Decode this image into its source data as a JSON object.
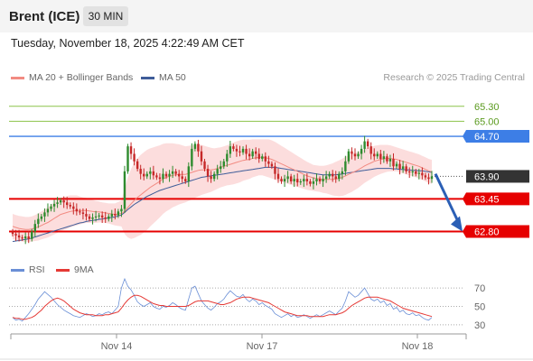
{
  "header": {
    "instrument": "Brent (ICE)",
    "interval": "30 MIN",
    "datetime": "Tuesday, November 18, 2025 4:22:49 AM CET"
  },
  "legend": {
    "ma20": "MA 20 + Bollinger Bands",
    "ma50": "MA 50",
    "credit": "Research © 2025 Trading Central",
    "rsi": "RSI",
    "ma9": "9MA"
  },
  "colors": {
    "resistance": "#8bc34a",
    "pivot": "#3d7ee6",
    "support": "#e60000",
    "last_price": "#333333",
    "ma20": "#f28b82",
    "ma50": "#3f5d99",
    "bollinger_fill": "#fcd9d9",
    "candle_up": "#2e8b2e",
    "candle_down": "#c62828",
    "rsi": "#6a8fd6",
    "rsi_ma": "#e53935",
    "arrow": "#2b5fb5"
  },
  "chart_data": {
    "type": "candlestick",
    "y_range": [
      62.52,
      65.62
    ],
    "x_labels": [
      "Nov 14",
      "Nov 17",
      "Nov 18"
    ],
    "levels": [
      {
        "label": "65.30",
        "value": 65.3,
        "kind": "resistance"
      },
      {
        "label": "65.00",
        "value": 65.0,
        "kind": "resistance"
      },
      {
        "label": "64.70",
        "value": 64.7,
        "kind": "pivot"
      },
      {
        "label": "63.90",
        "value": 63.9,
        "kind": "last"
      },
      {
        "label": "63.45",
        "value": 63.45,
        "kind": "support"
      },
      {
        "label": "62.80",
        "value": 62.8,
        "kind": "support"
      }
    ],
    "forecast_arrow": {
      "from": 63.95,
      "to": 62.8
    },
    "closes": [
      62.75,
      62.72,
      62.68,
      62.66,
      62.7,
      62.65,
      62.8,
      62.95,
      63.05,
      63.1,
      63.18,
      63.25,
      63.3,
      63.35,
      63.38,
      63.42,
      63.38,
      63.33,
      63.3,
      63.25,
      63.2,
      63.18,
      63.15,
      63.1,
      63.05,
      63.08,
      63.1,
      63.12,
      63.08,
      63.05,
      63.1,
      63.15,
      63.12,
      63.2,
      63.25,
      64.0,
      64.5,
      64.35,
      64.2,
      64.05,
      63.95,
      63.9,
      63.95,
      64.0,
      63.92,
      63.88,
      63.85,
      63.95,
      63.9,
      63.95,
      64.0,
      63.95,
      63.9,
      63.85,
      63.8,
      64.1,
      64.45,
      64.55,
      64.4,
      64.2,
      64.05,
      63.9,
      63.85,
      63.95,
      64.05,
      64.1,
      64.2,
      64.35,
      64.5,
      64.45,
      64.4,
      64.38,
      64.45,
      64.35,
      64.3,
      64.4,
      64.35,
      64.25,
      64.3,
      64.2,
      64.15,
      64.1,
      63.95,
      63.85,
      63.8,
      63.85,
      63.9,
      63.8,
      63.85,
      63.78,
      63.8,
      63.85,
      63.8,
      63.75,
      63.8,
      63.85,
      63.8,
      63.85,
      63.9,
      63.95,
      63.9,
      63.85,
      63.95,
      64.0,
      64.2,
      64.4,
      64.35,
      64.3,
      64.35,
      64.45,
      64.6,
      64.5,
      64.35,
      64.3,
      64.35,
      64.25,
      64.3,
      64.2,
      64.25,
      64.1,
      64.15,
      64.05,
      64.1,
      64.0,
      63.98,
      64.0,
      63.95,
      63.97,
      63.92,
      63.88,
      63.85,
      63.9
    ],
    "ma20": [
      62.9,
      62.88,
      62.86,
      62.85,
      62.84,
      62.84,
      62.85,
      62.87,
      62.89,
      62.92,
      62.95,
      62.98,
      63.02,
      63.06,
      63.1,
      63.14,
      63.16,
      63.18,
      63.2,
      63.21,
      63.22,
      63.22,
      63.22,
      63.22,
      63.21,
      63.2,
      63.19,
      63.19,
      63.18,
      63.17,
      63.16,
      63.15,
      63.14,
      63.15,
      63.16,
      63.2,
      63.28,
      63.35,
      63.42,
      63.48,
      63.53,
      63.58,
      63.63,
      63.68,
      63.72,
      63.76,
      63.8,
      63.85,
      63.88,
      63.9,
      63.92,
      63.93,
      63.94,
      63.94,
      63.94,
      63.96,
      63.98,
      64.0,
      64.02,
      64.03,
      64.03,
      64.03,
      64.03,
      64.04,
      64.06,
      64.08,
      64.1,
      64.12,
      64.14,
      64.16,
      64.18,
      64.2,
      64.22,
      64.23,
      64.24,
      64.26,
      64.27,
      64.28,
      64.28,
      64.27,
      64.26,
      64.24,
      64.21,
      64.18,
      64.15,
      64.12,
      64.09,
      64.06,
      64.03,
      64.0,
      63.97,
      63.94,
      63.91,
      63.89,
      63.87,
      63.86,
      63.85,
      63.84,
      63.84,
      63.84,
      63.84,
      63.85,
      63.86,
      63.88,
      63.91,
      63.94,
      63.97,
      64.0,
      64.03,
      64.07,
      64.11,
      64.14,
      64.17,
      64.2,
      64.22,
      64.24,
      64.25,
      64.26,
      64.26,
      64.25,
      64.24,
      64.22,
      64.2,
      64.18,
      64.16,
      64.14,
      64.12,
      64.1,
      64.07,
      64.04,
      64.01,
      63.99
    ],
    "bb_width": [
      0.25,
      0.25,
      0.25,
      0.25,
      0.25,
      0.25,
      0.25,
      0.26,
      0.27,
      0.28,
      0.29,
      0.3,
      0.31,
      0.32,
      0.33,
      0.33,
      0.33,
      0.33,
      0.32,
      0.31,
      0.3,
      0.28,
      0.26,
      0.25,
      0.24,
      0.23,
      0.22,
      0.21,
      0.2,
      0.2,
      0.2,
      0.21,
      0.22,
      0.24,
      0.26,
      0.45,
      0.6,
      0.7,
      0.75,
      0.78,
      0.8,
      0.8,
      0.8,
      0.78,
      0.76,
      0.74,
      0.72,
      0.7,
      0.68,
      0.66,
      0.64,
      0.62,
      0.6,
      0.58,
      0.56,
      0.55,
      0.54,
      0.53,
      0.52,
      0.5,
      0.48,
      0.46,
      0.44,
      0.42,
      0.41,
      0.4,
      0.4,
      0.4,
      0.41,
      0.42,
      0.42,
      0.42,
      0.41,
      0.4,
      0.39,
      0.38,
      0.37,
      0.36,
      0.36,
      0.37,
      0.38,
      0.38,
      0.38,
      0.37,
      0.36,
      0.35,
      0.34,
      0.33,
      0.32,
      0.31,
      0.3,
      0.29,
      0.28,
      0.27,
      0.26,
      0.26,
      0.26,
      0.27,
      0.28,
      0.3,
      0.32,
      0.34,
      0.36,
      0.37,
      0.38,
      0.38,
      0.38,
      0.37,
      0.36,
      0.35,
      0.34,
      0.33,
      0.32,
      0.31,
      0.3,
      0.29,
      0.28,
      0.27,
      0.26,
      0.25,
      0.24,
      0.24,
      0.24,
      0.24,
      0.24,
      0.24,
      0.24,
      0.24,
      0.24,
      0.24,
      0.24,
      0.24
    ],
    "ma50": [
      62.6,
      62.61,
      62.62,
      62.63,
      62.64,
      62.65,
      62.67,
      62.69,
      62.71,
      62.73,
      62.75,
      62.77,
      62.79,
      62.81,
      62.83,
      62.85,
      62.87,
      62.89,
      62.91,
      62.93,
      62.95,
      62.97,
      62.98,
      63.0,
      63.01,
      63.02,
      63.03,
      63.04,
      63.05,
      63.06,
      63.07,
      63.08,
      63.09,
      63.11,
      63.13,
      63.18,
      63.24,
      63.29,
      63.34,
      63.38,
      63.42,
      63.46,
      63.5,
      63.53,
      63.56,
      63.59,
      63.62,
      63.64,
      63.66,
      63.68,
      63.7,
      63.72,
      63.74,
      63.76,
      63.78,
      63.8,
      63.82,
      63.84,
      63.86,
      63.88,
      63.89,
      63.9,
      63.91,
      63.92,
      63.93,
      63.94,
      63.95,
      63.96,
      63.97,
      63.98,
      63.99,
      64.0,
      64.01,
      64.02,
      64.03,
      64.04,
      64.05,
      64.06,
      64.07,
      64.08,
      64.08,
      64.08,
      64.08,
      64.07,
      64.06,
      64.05,
      64.04,
      64.03,
      64.02,
      64.01,
      64.0,
      63.99,
      63.98,
      63.97,
      63.96,
      63.95,
      63.94,
      63.93,
      63.93,
      63.93,
      63.93,
      63.93,
      63.94,
      63.95,
      63.96,
      63.97,
      63.98,
      63.99,
      64.0,
      64.01,
      64.02,
      64.03,
      64.04,
      64.05,
      64.06,
      64.06,
      64.06,
      64.06,
      64.06,
      64.05,
      64.05,
      64.04,
      64.04,
      64.03,
      64.03,
      64.02,
      64.02,
      64.01,
      64.01,
      64.0,
      63.99,
      63.98
    ],
    "rsi": {
      "y_ticks": [
        70,
        50,
        30
      ],
      "y_range": [
        22,
        78
      ],
      "values": [
        38,
        35,
        36,
        34,
        38,
        42,
        47,
        52,
        58,
        62,
        66,
        63,
        60,
        56,
        52,
        49,
        46,
        44,
        42,
        40,
        39,
        38,
        40,
        42,
        41,
        39,
        40,
        42,
        41,
        43,
        44,
        42,
        46,
        50,
        70,
        80,
        72,
        68,
        62,
        55,
        52,
        50,
        52,
        54,
        50,
        48,
        47,
        50,
        49,
        51,
        54,
        52,
        49,
        47,
        46,
        58,
        70,
        72,
        64,
        56,
        52,
        48,
        46,
        49,
        53,
        55,
        58,
        63,
        67,
        64,
        61,
        60,
        63,
        58,
        55,
        58,
        56,
        52,
        54,
        51,
        49,
        47,
        42,
        40,
        38,
        40,
        42,
        39,
        41,
        38,
        39,
        41,
        39,
        37,
        39,
        41,
        39,
        41,
        43,
        45,
        43,
        41,
        45,
        48,
        56,
        66,
        63,
        60,
        62,
        66,
        70,
        64,
        58,
        56,
        58,
        54,
        56,
        51,
        53,
        47,
        49,
        44,
        46,
        42,
        41,
        43,
        40,
        41,
        38,
        36,
        35,
        38
      ],
      "ma9": [
        38,
        37,
        37,
        36,
        36,
        37,
        38,
        40,
        43,
        46,
        50,
        53,
        56,
        58,
        59,
        58,
        56,
        53,
        50,
        47,
        45,
        43,
        42,
        41,
        41,
        41,
        40,
        40,
        40,
        41,
        41,
        42,
        43,
        44,
        48,
        53,
        57,
        60,
        62,
        62,
        61,
        59,
        57,
        55,
        53,
        52,
        51,
        51,
        50,
        50,
        50,
        50,
        50,
        50,
        50,
        51,
        53,
        55,
        56,
        56,
        56,
        56,
        55,
        54,
        53,
        52,
        52,
        53,
        54,
        56,
        58,
        59,
        60,
        60,
        60,
        59,
        58,
        57,
        56,
        55,
        54,
        52,
        50,
        48,
        46,
        44,
        43,
        42,
        41,
        40,
        40,
        40,
        40,
        39,
        39,
        39,
        39,
        39,
        40,
        41,
        41,
        41,
        42,
        43,
        45,
        48,
        51,
        53,
        55,
        57,
        59,
        60,
        60,
        60,
        60,
        59,
        58,
        57,
        56,
        54,
        52,
        50,
        48,
        47,
        46,
        45,
        44,
        43,
        42,
        41,
        40,
        39
      ]
    }
  }
}
